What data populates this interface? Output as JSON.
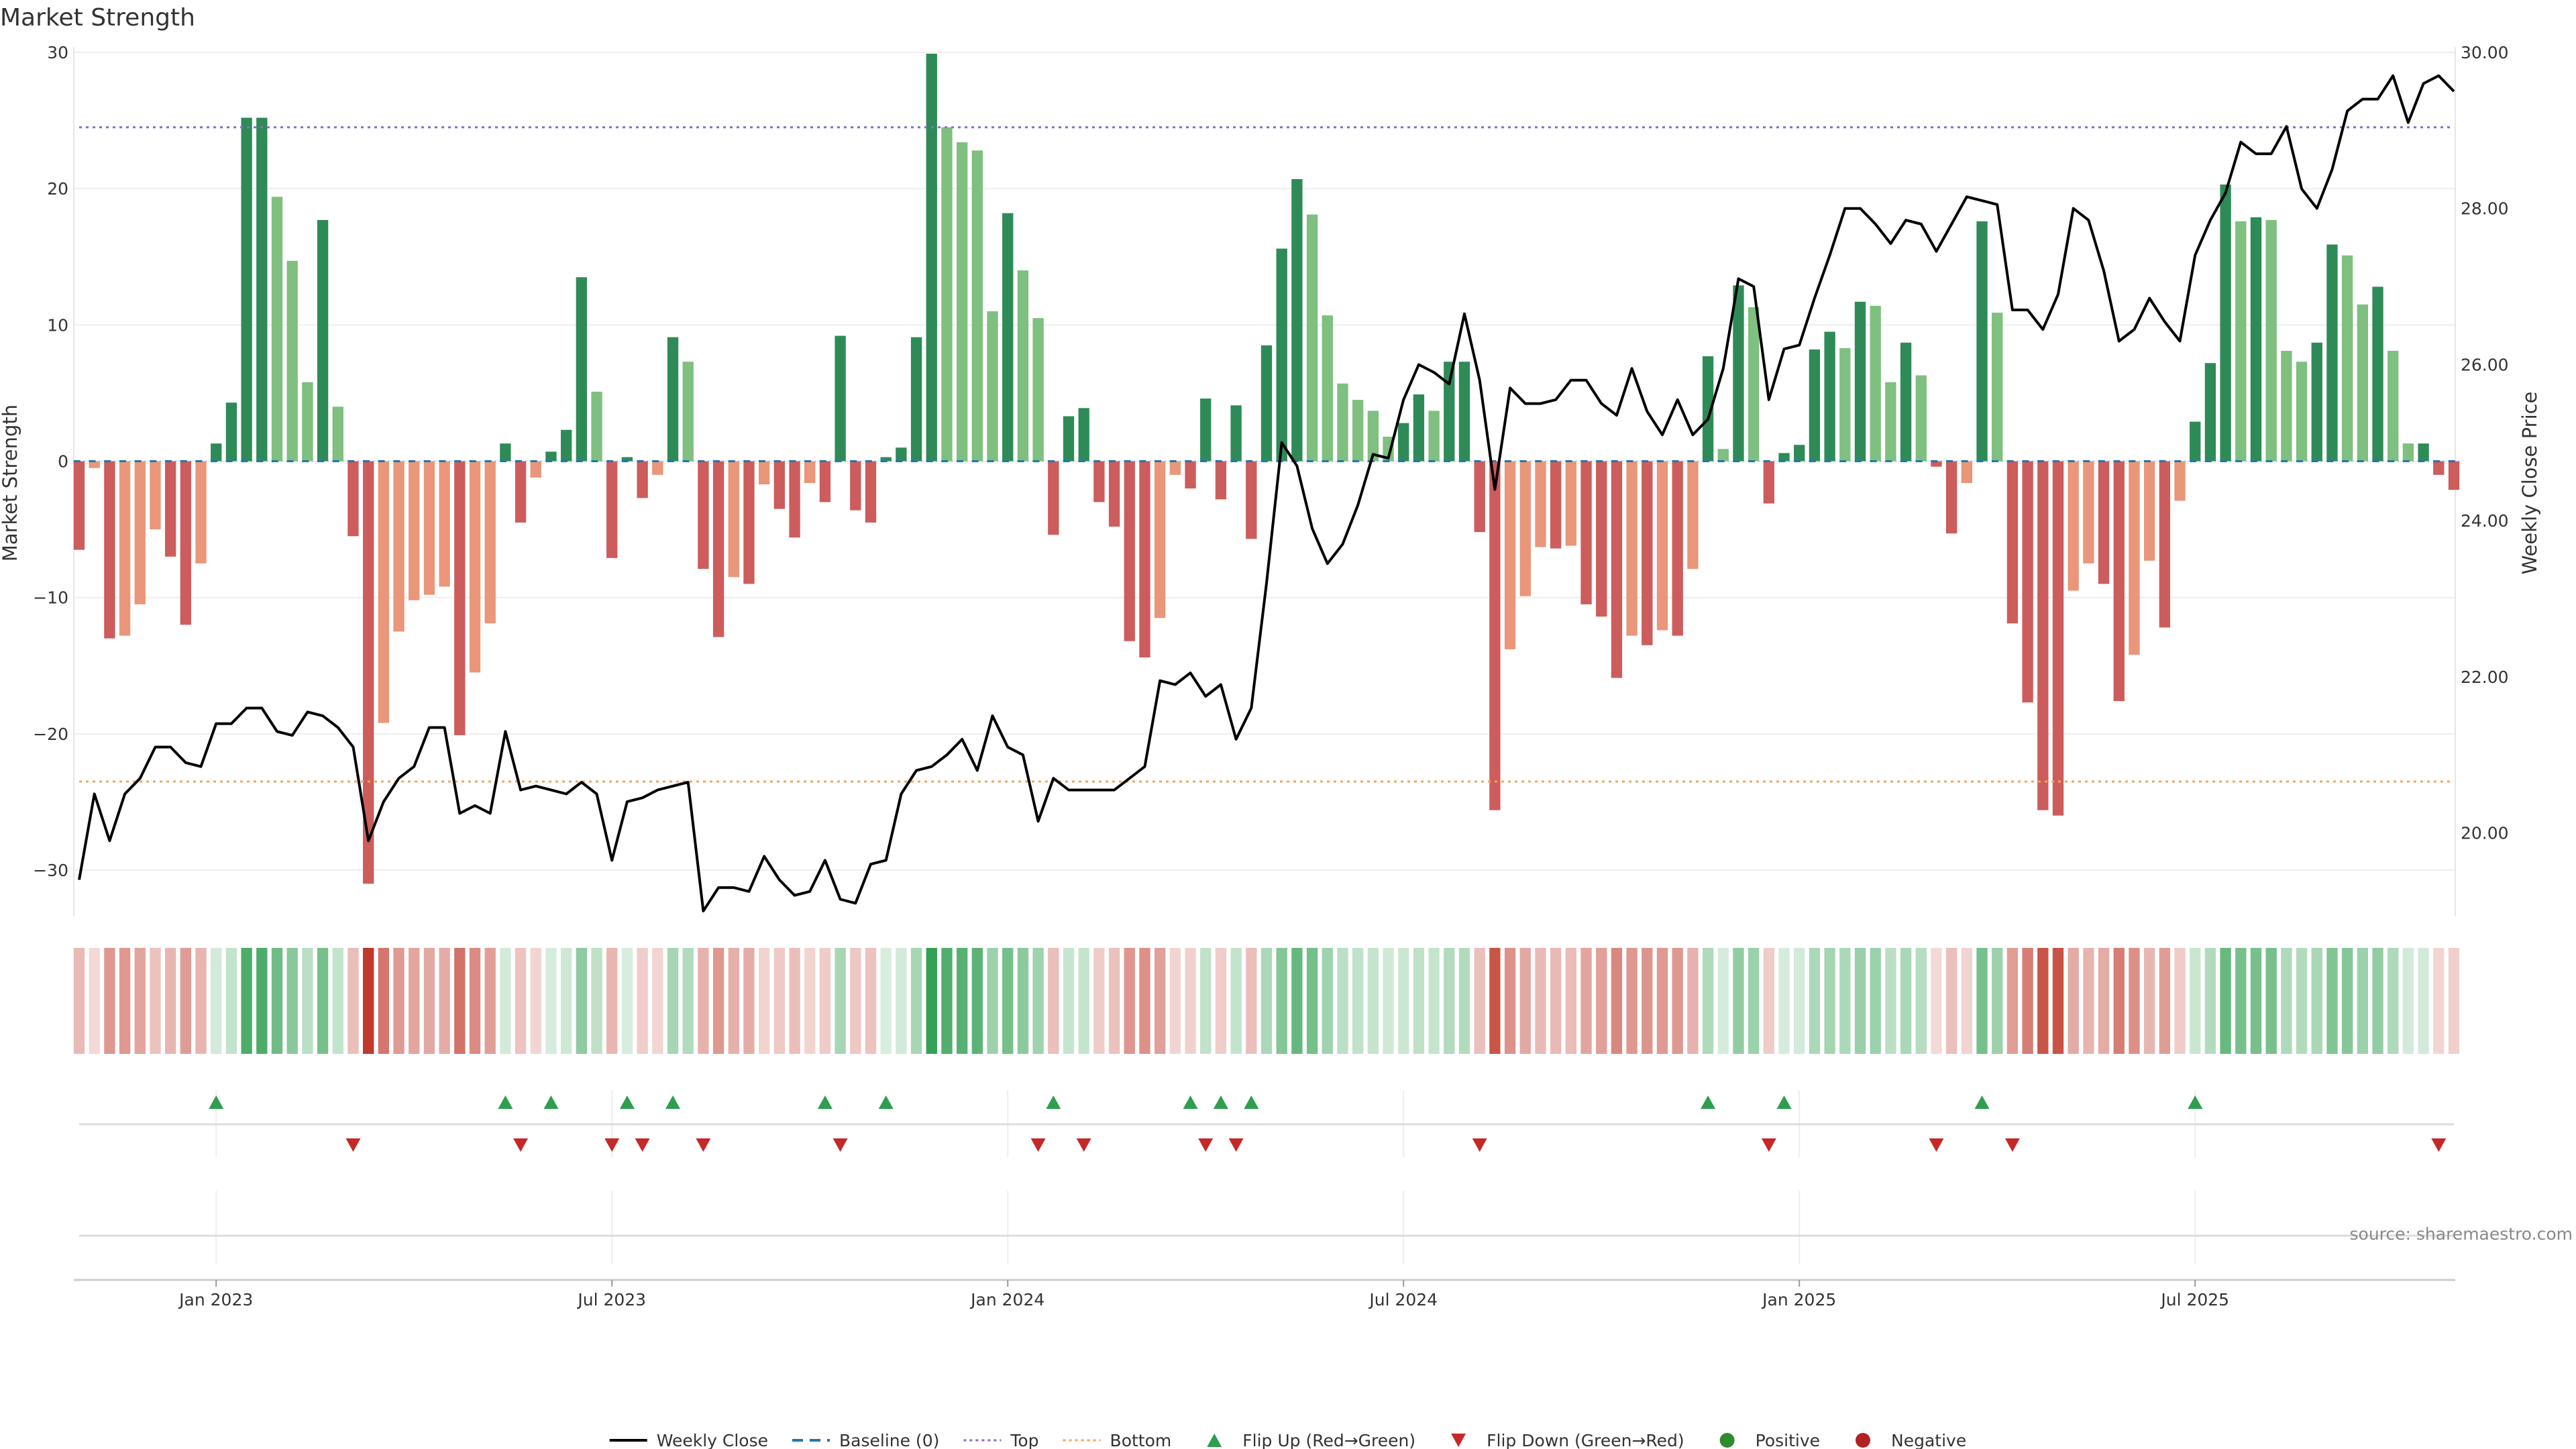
{
  "chart_data": {
    "type": "bar",
    "title": "Market Strength",
    "ylabel": "Market Strength",
    "y2label": "Weekly Close Price",
    "ylim": [
      -33,
      30
    ],
    "y2lim": [
      19.0,
      30.0
    ],
    "yticks": [
      "−30",
      "−20",
      "−10",
      "0",
      "10",
      "20",
      "30"
    ],
    "y2ticks": [
      "20.00",
      "22.00",
      "24.00",
      "26.00",
      "28.00",
      "30.00"
    ],
    "xticks": [
      "Jan 2023",
      "Jul 2023",
      "Jan 2024",
      "Jul 2024",
      "Jan 2025",
      "Jul 2025"
    ],
    "xtick_weeks": [
      9,
      35,
      61,
      87,
      113,
      139
    ],
    "top_line": 24.5,
    "bottom_line": -23.5,
    "strength": [
      -6.5,
      -0.5,
      -13,
      -12.8,
      -10.5,
      -5,
      -7,
      -12,
      -7.5,
      1.3,
      4.3,
      25.2,
      25.2,
      19.4,
      14.7,
      5.8,
      17.7,
      4,
      -5.5,
      -31,
      -19.2,
      -12.5,
      -10.2,
      -9.8,
      -9.2,
      -20.1,
      -15.5,
      -11.9,
      1.3,
      -4.5,
      -1.2,
      0.7,
      2.3,
      13.5,
      5.1,
      -7.1,
      0.3,
      -2.7,
      -1,
      9.1,
      7.3,
      -7.9,
      -12.9,
      -8.5,
      -9,
      -1.7,
      -3.5,
      -5.6,
      -1.6,
      -3,
      9.2,
      -3.6,
      -4.5,
      0.3,
      1,
      9.1,
      29.9,
      24.5,
      23.4,
      22.8,
      11,
      18.2,
      14,
      10.5,
      -5.4,
      3.3,
      3.9,
      -3,
      -4.8,
      -13.2,
      -14.4,
      -11.5,
      -1,
      -2,
      4.6,
      -2.8,
      4.1,
      -5.7,
      8.5,
      15.6,
      20.7,
      18.1,
      10.7,
      5.7,
      4.5,
      3.7,
      1.8,
      2.8,
      4.9,
      3.7,
      7.3,
      7.3,
      -5.2,
      -25.6,
      -13.8,
      -9.9,
      -6.3,
      -6.4,
      -6.2,
      -10.5,
      -11.4,
      -15.9,
      -12.8,
      -13.5,
      -12.4,
      -12.8,
      -7.9,
      7.7,
      0.9,
      12.9,
      11.3,
      -3.1,
      0.6,
      1.2,
      8.2,
      9.5,
      8.3,
      11.7,
      11.4,
      5.8,
      8.7,
      6.3,
      -0.4,
      -5.3,
      -1.6,
      17.6,
      10.9,
      -11.9,
      -17.7,
      -25.6,
      -26,
      -9.5,
      -7.5,
      -9,
      -17.6,
      -14.2,
      -7.3,
      -12.2,
      -2.9,
      2.9,
      7.2,
      20.3,
      17.6,
      17.9,
      17.7,
      8.1,
      7.3,
      8.7,
      15.9,
      15.1,
      11.5,
      12.8,
      8.1,
      1.3,
      1.3,
      -1,
      -2.1
    ],
    "close": [
      19.4,
      20.5,
      19.9,
      20.5,
      20.7,
      21.1,
      21.1,
      20.9,
      20.85,
      21.4,
      21.4,
      21.6,
      21.6,
      21.3,
      21.25,
      21.55,
      21.5,
      21.35,
      21.1,
      19.9,
      20.4,
      20.7,
      20.85,
      21.35,
      21.35,
      20.25,
      20.35,
      20.25,
      21.3,
      20.55,
      20.6,
      20.55,
      20.5,
      20.65,
      20.5,
      19.65,
      20.4,
      20.45,
      20.55,
      20.6,
      20.65,
      19.0,
      19.3,
      19.3,
      19.25,
      19.7,
      19.4,
      19.2,
      19.25,
      19.65,
      19.15,
      19.1,
      19.6,
      19.65,
      20.5,
      20.8,
      20.85,
      21.0,
      21.2,
      20.8,
      21.5,
      21.1,
      21.0,
      20.15,
      20.7,
      20.55,
      20.55,
      20.55,
      20.55,
      20.7,
      20.85,
      21.95,
      21.9,
      22.05,
      21.75,
      21.9,
      21.2,
      21.6,
      23.2,
      25.0,
      24.7,
      23.9,
      23.45,
      23.7,
      24.2,
      24.85,
      24.8,
      25.55,
      26.0,
      25.9,
      25.75,
      26.65,
      25.8,
      24.4,
      25.7,
      25.5,
      25.5,
      25.55,
      25.8,
      25.8,
      25.5,
      25.35,
      25.95,
      25.4,
      25.1,
      25.55,
      25.1,
      25.3,
      25.95,
      27.1,
      27.0,
      25.55,
      26.2,
      26.25,
      26.85,
      27.4,
      28.0,
      28.0,
      27.8,
      27.55,
      27.85,
      27.8,
      27.45,
      27.8,
      28.15,
      28.1,
      28.05,
      26.7,
      26.7,
      26.45,
      26.9,
      28.0,
      27.85,
      27.2,
      26.3,
      26.45,
      26.85,
      26.55,
      26.3,
      27.4,
      27.85,
      28.2,
      28.85,
      28.7,
      28.7,
      29.05,
      28.25,
      28.0,
      28.5,
      29.25,
      29.4,
      29.4,
      29.7,
      29.1,
      29.6,
      29.7,
      29.5
    ],
    "flip_up_weeks": [
      9,
      28,
      31,
      36,
      39,
      49,
      53,
      64,
      73,
      75,
      77,
      107,
      112,
      125,
      139
    ],
    "flip_down_weeks": [
      18,
      29,
      35,
      37,
      41,
      50,
      63,
      66,
      74,
      76,
      92,
      111,
      122,
      127,
      155
    ],
    "legend": [
      "Weekly Close",
      "Baseline (0)",
      "Top",
      "Bottom",
      "Flip Up (Red→Green)",
      "Flip Down (Green→Red)",
      "Positive",
      "Negative"
    ],
    "source": "source: sharemaestro.com",
    "colors": {
      "positive_dark": "#2e8b57",
      "positive_light": "#7fbf7f",
      "negative_dark": "#cd5c5c",
      "negative_light": "#e9967a",
      "close_line": "#000000",
      "baseline": "#1f77b4",
      "top_line": "#8c6bc8",
      "bottom_line": "#f4a460",
      "flip_up": "#2e9e4f",
      "flip_down": "#c62828",
      "positive_dot": "#2e8b2e",
      "negative_dot": "#b22222"
    }
  }
}
